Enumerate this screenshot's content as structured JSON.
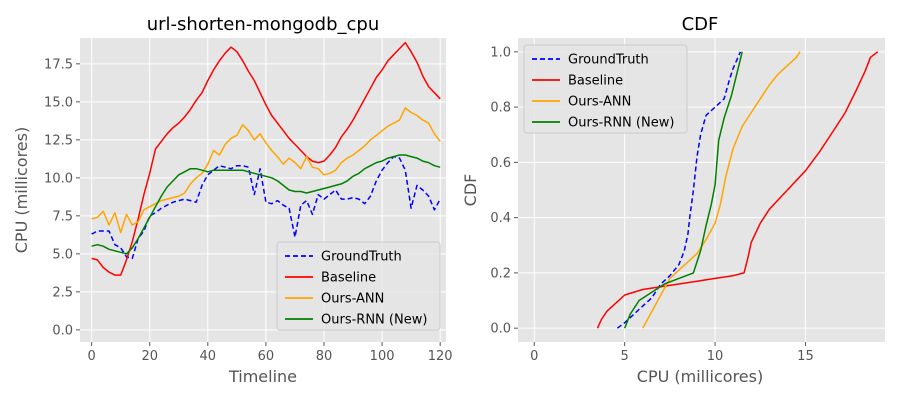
{
  "chart_data": [
    {
      "type": "line",
      "title": "url-shorten-mongodb_cpu",
      "xlabel": "Timeline",
      "ylabel": "CPU (millicores)",
      "xlim": [
        -4,
        122
      ],
      "ylim": [
        -0.8,
        19.2
      ],
      "xticks": [
        0,
        20,
        40,
        60,
        80,
        100,
        120
      ],
      "yticks": [
        0.0,
        2.5,
        5.0,
        7.5,
        10.0,
        12.5,
        15.0,
        17.5
      ],
      "ytick_labels": [
        "0.0",
        "2.5",
        "5.0",
        "7.5",
        "10.0",
        "12.5",
        "15.0",
        "17.5"
      ],
      "grid": true,
      "legend_position": "lower-right",
      "series": [
        {
          "name": "GroundTruth",
          "color": "#0000ff",
          "dashed": true,
          "x": [
            0,
            2,
            4,
            6,
            8,
            10,
            12,
            14,
            16,
            18,
            20,
            22,
            24,
            26,
            28,
            30,
            32,
            34,
            36,
            38,
            40,
            42,
            44,
            46,
            48,
            50,
            52,
            54,
            56,
            58,
            60,
            62,
            64,
            66,
            68,
            70,
            72,
            74,
            76,
            78,
            80,
            82,
            84,
            86,
            88,
            90,
            92,
            94,
            96,
            98,
            100,
            102,
            104,
            106,
            108,
            110,
            112,
            114,
            116,
            118,
            120
          ],
          "y": [
            6.3,
            6.5,
            6.5,
            6.5,
            5.6,
            5.4,
            4.8,
            4.7,
            6.0,
            6.5,
            7.5,
            7.7,
            8.0,
            8.2,
            8.4,
            8.5,
            8.6,
            8.5,
            8.4,
            9.5,
            10.2,
            10.5,
            10.8,
            10.7,
            10.6,
            10.8,
            10.8,
            10.7,
            8.9,
            10.6,
            8.4,
            8.3,
            8.5,
            8.2,
            8.0,
            6.1,
            8.2,
            8.5,
            7.6,
            8.9,
            8.6,
            8.9,
            9.2,
            8.6,
            8.6,
            8.7,
            8.6,
            8.3,
            8.8,
            9.8,
            10.5,
            11.0,
            11.4,
            11.3,
            10.5,
            8.0,
            9.5,
            9.2,
            8.8,
            7.9,
            8.6
          ]
        },
        {
          "name": "Baseline",
          "color": "#ff0000",
          "dashed": false,
          "x": [
            0,
            2,
            4,
            6,
            8,
            10,
            12,
            14,
            16,
            18,
            20,
            22,
            24,
            26,
            28,
            30,
            32,
            34,
            36,
            38,
            40,
            42,
            44,
            46,
            48,
            50,
            52,
            54,
            56,
            58,
            60,
            62,
            64,
            66,
            68,
            70,
            72,
            74,
            76,
            78,
            80,
            82,
            84,
            86,
            88,
            90,
            92,
            94,
            96,
            98,
            100,
            102,
            104,
            106,
            108,
            110,
            112,
            114,
            116,
            118,
            120
          ],
          "y": [
            4.7,
            4.6,
            4.1,
            3.8,
            3.6,
            3.6,
            4.6,
            5.8,
            7.3,
            8.9,
            10.3,
            11.9,
            12.4,
            12.9,
            13.3,
            13.6,
            14.0,
            14.5,
            15.1,
            15.6,
            16.4,
            17.1,
            17.7,
            18.2,
            18.6,
            18.3,
            17.7,
            17.0,
            16.4,
            15.6,
            14.8,
            14.1,
            13.6,
            13.1,
            12.6,
            12.2,
            11.8,
            11.4,
            11.1,
            11.0,
            11.1,
            11.5,
            12.0,
            12.7,
            13.2,
            13.8,
            14.5,
            15.2,
            15.9,
            16.6,
            17.1,
            17.7,
            18.1,
            18.5,
            18.9,
            18.3,
            17.6,
            16.7,
            16.0,
            15.6,
            15.2
          ]
        },
        {
          "name": "Ours-ANN",
          "color": "#ffa500",
          "dashed": false,
          "x": [
            0,
            2,
            4,
            6,
            8,
            10,
            12,
            14,
            16,
            18,
            20,
            22,
            24,
            26,
            28,
            30,
            32,
            34,
            36,
            38,
            40,
            42,
            44,
            46,
            48,
            50,
            52,
            54,
            56,
            58,
            60,
            62,
            64,
            66,
            68,
            70,
            72,
            74,
            76,
            78,
            80,
            82,
            84,
            86,
            88,
            90,
            92,
            94,
            96,
            98,
            100,
            102,
            104,
            106,
            108,
            110,
            112,
            114,
            116,
            118,
            120
          ],
          "y": [
            7.3,
            7.4,
            7.8,
            6.9,
            7.7,
            6.4,
            7.6,
            6.9,
            7.1,
            7.9,
            8.1,
            8.3,
            8.5,
            8.6,
            8.7,
            8.8,
            9.0,
            9.6,
            10.0,
            10.3,
            10.9,
            11.8,
            11.5,
            12.2,
            12.6,
            12.8,
            13.5,
            13.1,
            12.5,
            12.9,
            12.3,
            11.8,
            11.4,
            10.9,
            11.3,
            11.0,
            10.6,
            11.4,
            10.7,
            10.6,
            10.2,
            10.3,
            10.5,
            11.0,
            11.3,
            11.5,
            11.8,
            12.1,
            12.5,
            12.8,
            13.1,
            13.4,
            13.6,
            13.8,
            14.6,
            14.3,
            14.1,
            13.8,
            13.6,
            12.9,
            12.4
          ]
        },
        {
          "name": "Ours-RNN (New)",
          "color": "#008000",
          "dashed": false,
          "x": [
            0,
            2,
            4,
            6,
            8,
            10,
            12,
            14,
            16,
            18,
            20,
            22,
            24,
            26,
            28,
            30,
            32,
            34,
            36,
            38,
            40,
            42,
            44,
            46,
            48,
            50,
            52,
            54,
            56,
            58,
            60,
            62,
            64,
            66,
            68,
            70,
            72,
            74,
            76,
            78,
            80,
            82,
            84,
            86,
            88,
            90,
            92,
            94,
            96,
            98,
            100,
            102,
            104,
            106,
            108,
            110,
            112,
            114,
            116,
            118,
            120
          ],
          "y": [
            5.5,
            5.6,
            5.5,
            5.3,
            5.2,
            5.1,
            5.0,
            5.4,
            6.0,
            6.7,
            7.4,
            8.1,
            8.8,
            9.4,
            9.8,
            10.2,
            10.4,
            10.6,
            10.6,
            10.5,
            10.4,
            10.5,
            10.5,
            10.5,
            10.5,
            10.5,
            10.5,
            10.4,
            10.3,
            10.2,
            10.1,
            10.0,
            9.8,
            9.5,
            9.2,
            9.1,
            9.1,
            9.0,
            9.1,
            9.2,
            9.3,
            9.4,
            9.5,
            9.6,
            9.8,
            10.1,
            10.3,
            10.6,
            10.8,
            11.0,
            11.1,
            11.3,
            11.4,
            11.5,
            11.5,
            11.4,
            11.3,
            11.1,
            11.0,
            10.8,
            10.7
          ]
        }
      ]
    },
    {
      "type": "line",
      "title": "CDF",
      "xlabel": "CPU (millicores)",
      "ylabel": "CDF",
      "xlim": [
        -0.9,
        19.4
      ],
      "ylim": [
        -0.05,
        1.05
      ],
      "xticks": [
        0,
        5,
        10,
        15
      ],
      "yticks": [
        0.0,
        0.2,
        0.4,
        0.6,
        0.8,
        1.0
      ],
      "ytick_labels": [
        "0.0",
        "0.2",
        "0.4",
        "0.6",
        "0.8",
        "1.0"
      ],
      "grid": true,
      "legend_position": "top-left",
      "series": [
        {
          "name": "GroundTruth",
          "color": "#0000ff",
          "dashed": true,
          "x": [
            4.6,
            5.0,
            5.5,
            6.0,
            6.5,
            7.0,
            7.5,
            8.0,
            8.3,
            8.5,
            8.6,
            8.7,
            8.8,
            8.9,
            9.0,
            9.2,
            9.5,
            10.0,
            10.5,
            10.8,
            11.0,
            11.2,
            11.4
          ],
          "y": [
            0.0,
            0.02,
            0.05,
            0.08,
            0.11,
            0.16,
            0.19,
            0.23,
            0.28,
            0.34,
            0.4,
            0.45,
            0.5,
            0.56,
            0.62,
            0.7,
            0.77,
            0.8,
            0.83,
            0.9,
            0.94,
            0.97,
            1.0
          ]
        },
        {
          "name": "Baseline",
          "color": "#ff0000",
          "dashed": false,
          "x": [
            3.5,
            3.7,
            4.0,
            4.5,
            5.0,
            6.0,
            7.0,
            8.0,
            9.0,
            10.0,
            11.0,
            11.6,
            11.8,
            12.0,
            12.5,
            13.0,
            14.0,
            15.0,
            15.8,
            16.5,
            17.2,
            17.8,
            18.3,
            18.6,
            19.0
          ],
          "y": [
            0.0,
            0.03,
            0.06,
            0.09,
            0.12,
            0.14,
            0.15,
            0.16,
            0.17,
            0.18,
            0.19,
            0.2,
            0.25,
            0.31,
            0.38,
            0.43,
            0.5,
            0.57,
            0.64,
            0.71,
            0.78,
            0.86,
            0.93,
            0.98,
            1.0
          ]
        },
        {
          "name": "Ours-ANN",
          "color": "#ffa500",
          "dashed": false,
          "x": [
            6.0,
            6.5,
            7.0,
            7.5,
            8.0,
            8.5,
            9.0,
            9.5,
            10.0,
            10.3,
            10.6,
            11.0,
            11.5,
            12.0,
            12.5,
            13.0,
            13.5,
            14.0,
            14.5,
            14.7
          ],
          "y": [
            0.0,
            0.06,
            0.12,
            0.18,
            0.21,
            0.24,
            0.27,
            0.32,
            0.38,
            0.45,
            0.55,
            0.65,
            0.73,
            0.78,
            0.83,
            0.88,
            0.92,
            0.95,
            0.98,
            1.0
          ]
        },
        {
          "name": "Ours-RNN (New)",
          "color": "#008000",
          "dashed": false,
          "x": [
            5.0,
            5.3,
            5.8,
            6.5,
            7.2,
            8.0,
            8.8,
            9.2,
            9.5,
            9.8,
            10.0,
            10.1,
            10.2,
            10.5,
            10.9,
            11.2,
            11.5
          ],
          "y": [
            0.0,
            0.05,
            0.1,
            0.13,
            0.16,
            0.18,
            0.2,
            0.28,
            0.37,
            0.45,
            0.52,
            0.6,
            0.68,
            0.76,
            0.84,
            0.92,
            1.0
          ]
        }
      ]
    }
  ]
}
